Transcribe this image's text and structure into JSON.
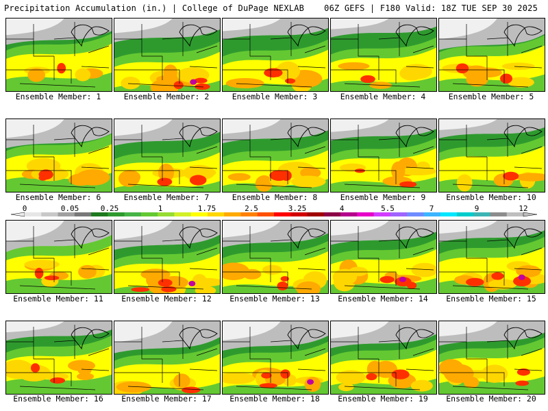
{
  "header": {
    "left": "Precipitation Accumulation (in.) | College of DuPage NEXLAB",
    "right": "06Z GEFS | F180 Valid: 18Z TUE SEP 30 2025"
  },
  "colorbar": {
    "labels": [
      "0",
      "0.05",
      "0.25",
      "1",
      "1.75",
      "2.5",
      "3.25",
      "4",
      "5.5",
      "7",
      "9",
      "12"
    ],
    "colors": [
      "#e6e6e6",
      "#c8c8c8",
      "#a0a0a0",
      "#787878",
      "#1e7a1e",
      "#2e9a2e",
      "#46b446",
      "#64c832",
      "#96dc32",
      "#d2f028",
      "#ffff00",
      "#ffd700",
      "#ffaa00",
      "#ff8000",
      "#ff5000",
      "#ff0000",
      "#d20000",
      "#a00000",
      "#8c0046",
      "#b4008c",
      "#e600c8",
      "#d23cff",
      "#a064ff",
      "#6e8cff",
      "#3cb4ff",
      "#00e6ff",
      "#00cccc",
      "#3cb4b4",
      "#8c8c8c",
      "#bebebe"
    ]
  },
  "panels": [
    {
      "caption": "Ensemble Member: 1",
      "intensity": 1
    },
    {
      "caption": "Ensemble Member: 2",
      "intensity": 3
    },
    {
      "caption": "Ensemble Member: 3",
      "intensity": 2
    },
    {
      "caption": "Ensemble Member: 4",
      "intensity": 1
    },
    {
      "caption": "Ensemble Member: 5",
      "intensity": 2
    },
    {
      "caption": "Ensemble Member: 6",
      "intensity": 2
    },
    {
      "caption": "Ensemble Member: 7",
      "intensity": 2
    },
    {
      "caption": "Ensemble Member: 8",
      "intensity": 2
    },
    {
      "caption": "Ensemble Member: 9",
      "intensity": 2
    },
    {
      "caption": "Ensemble Member: 10",
      "intensity": 1
    },
    {
      "caption": "Ensemble Member: 11",
      "intensity": 2
    },
    {
      "caption": "Ensemble Member: 12",
      "intensity": 3
    },
    {
      "caption": "Ensemble Member: 13",
      "intensity": 2
    },
    {
      "caption": "Ensemble Member: 14",
      "intensity": 3
    },
    {
      "caption": "Ensemble Member: 15",
      "intensity": 3
    },
    {
      "caption": "Ensemble Member: 16",
      "intensity": 2
    },
    {
      "caption": "Ensemble Member: 17",
      "intensity": 1
    },
    {
      "caption": "Ensemble Member: 18",
      "intensity": 3
    },
    {
      "caption": "Ensemble Member: 19",
      "intensity": 2
    },
    {
      "caption": "Ensemble Member: 20",
      "intensity": 2
    }
  ]
}
